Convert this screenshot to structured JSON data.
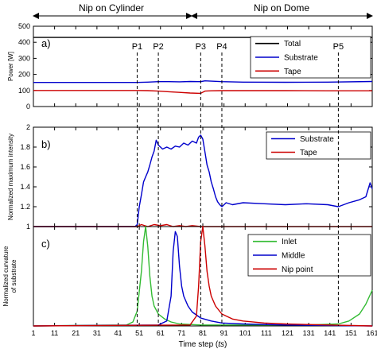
{
  "header": {
    "left": "Nip on Cylinder",
    "right": "Nip on Dome"
  },
  "chart_data": [
    {
      "type": "line",
      "panel_label": "a)",
      "ylabel": "Power [W]",
      "ylim": [
        0,
        500
      ],
      "yticks": [
        "0",
        "100",
        "200",
        "300",
        "400",
        "500"
      ],
      "legend": "top-right",
      "series": [
        {
          "name": "Total",
          "color": "#000000",
          "x": [
            1,
            161
          ],
          "y": [
            430,
            430
          ]
        },
        {
          "name": "Substrate",
          "color": "#0000cc",
          "x": [
            1,
            50,
            55,
            60,
            65,
            70,
            75,
            80,
            82,
            85,
            90,
            100,
            120,
            140,
            161
          ],
          "y": [
            150,
            150,
            152,
            155,
            155,
            154,
            156,
            155,
            160,
            158,
            155,
            152,
            151,
            152,
            156
          ]
        },
        {
          "name": "Tape",
          "color": "#cc0000",
          "x": [
            1,
            50,
            55,
            60,
            65,
            70,
            75,
            80,
            82,
            85,
            90,
            100,
            120,
            140,
            161
          ],
          "y": [
            100,
            100,
            99,
            96,
            92,
            88,
            84,
            82,
            96,
            98,
            99,
            99,
            99,
            98,
            98
          ]
        }
      ]
    },
    {
      "type": "line",
      "panel_label": "b)",
      "ylabel": "Normalized maximum intensity",
      "ylim": [
        1,
        2
      ],
      "yticks": [
        "1",
        "1.2",
        "1.4",
        "1.6",
        "1.8",
        "2"
      ],
      "legend": "top-right",
      "series": [
        {
          "name": "Substrate",
          "color": "#0000cc",
          "x": [
            1,
            49,
            50,
            51,
            52,
            53,
            54,
            55,
            56,
            57,
            58,
            59,
            60,
            61,
            62,
            64,
            66,
            68,
            70,
            72,
            74,
            76,
            78,
            79,
            80,
            81,
            82,
            83,
            84,
            85,
            86,
            87,
            88,
            89,
            90,
            92,
            95,
            100,
            110,
            120,
            130,
            140,
            145,
            150,
            155,
            158,
            160,
            161
          ],
          "y": [
            1.0,
            1.0,
            1.02,
            1.2,
            1.32,
            1.45,
            1.5,
            1.55,
            1.62,
            1.7,
            1.76,
            1.87,
            1.82,
            1.8,
            1.78,
            1.8,
            1.78,
            1.81,
            1.8,
            1.84,
            1.82,
            1.86,
            1.84,
            1.9,
            1.92,
            1.88,
            1.75,
            1.62,
            1.55,
            1.45,
            1.38,
            1.3,
            1.25,
            1.22,
            1.2,
            1.24,
            1.22,
            1.24,
            1.23,
            1.22,
            1.23,
            1.22,
            1.2,
            1.24,
            1.27,
            1.3,
            1.44,
            1.38
          ]
        },
        {
          "name": "Tape",
          "color": "#cc0000",
          "x": [
            1,
            50,
            52,
            55,
            58,
            61,
            64,
            67,
            70,
            73,
            76,
            80,
            82,
            85,
            161
          ],
          "y": [
            1.0,
            1.0,
            1.02,
            1.0,
            1.02,
            1.01,
            1.02,
            1.0,
            1.01,
            1.0,
            1.01,
            1.0,
            1.0,
            1.0,
            1.0
          ]
        }
      ]
    },
    {
      "type": "line",
      "panel_label": "c)",
      "ylabel_line1": "Normalized curvature",
      "ylabel_line2": "of substrate",
      "ylim": [
        0,
        1
      ],
      "legend": "top-right",
      "series": [
        {
          "name": "Inlet",
          "color": "#33bb33",
          "x": [
            1,
            45,
            48,
            50,
            52,
            53,
            54,
            55,
            56,
            57,
            58,
            60,
            63,
            66,
            70,
            80,
            100,
            130,
            145,
            150,
            155,
            158,
            161
          ],
          "y": [
            0.0,
            0.01,
            0.04,
            0.15,
            0.55,
            0.85,
            1.0,
            0.8,
            0.5,
            0.3,
            0.2,
            0.12,
            0.07,
            0.04,
            0.02,
            0.01,
            0.01,
            0.01,
            0.02,
            0.05,
            0.12,
            0.22,
            0.36
          ]
        },
        {
          "name": "Middle",
          "color": "#0000cc",
          "x": [
            1,
            60,
            64,
            66,
            67,
            68,
            69,
            70,
            71,
            72,
            74,
            76,
            80,
            85,
            90,
            100,
            120,
            161
          ],
          "y": [
            0.0,
            0.01,
            0.05,
            0.3,
            0.75,
            0.95,
            0.9,
            0.6,
            0.4,
            0.3,
            0.2,
            0.14,
            0.08,
            0.05,
            0.03,
            0.02,
            0.01,
            0.0
          ]
        },
        {
          "name": "Nip point",
          "color": "#cc0000",
          "x": [
            1,
            75,
            78,
            79,
            80,
            81,
            82,
            83,
            84,
            85,
            87,
            90,
            95,
            100,
            110,
            120,
            140,
            161
          ],
          "y": [
            0.0,
            0.01,
            0.1,
            0.4,
            0.85,
            1.0,
            0.8,
            0.55,
            0.4,
            0.3,
            0.2,
            0.12,
            0.07,
            0.05,
            0.03,
            0.02,
            0.01,
            0.0
          ]
        }
      ]
    }
  ],
  "markers": [
    {
      "label": "P1",
      "x": 50
    },
    {
      "label": "P2",
      "x": 60
    },
    {
      "label": "P3",
      "x": 80
    },
    {
      "label": "P4",
      "x": 90
    },
    {
      "label": "P5",
      "x": 145
    }
  ],
  "xaxis": {
    "xlim": [
      1,
      161
    ],
    "ticks": [
      1,
      11,
      21,
      31,
      41,
      51,
      61,
      71,
      81,
      91,
      101,
      111,
      121,
      131,
      141,
      151,
      161
    ],
    "label_prefix": "Time step (",
    "label_italic": "ts",
    "label_suffix": ")"
  }
}
